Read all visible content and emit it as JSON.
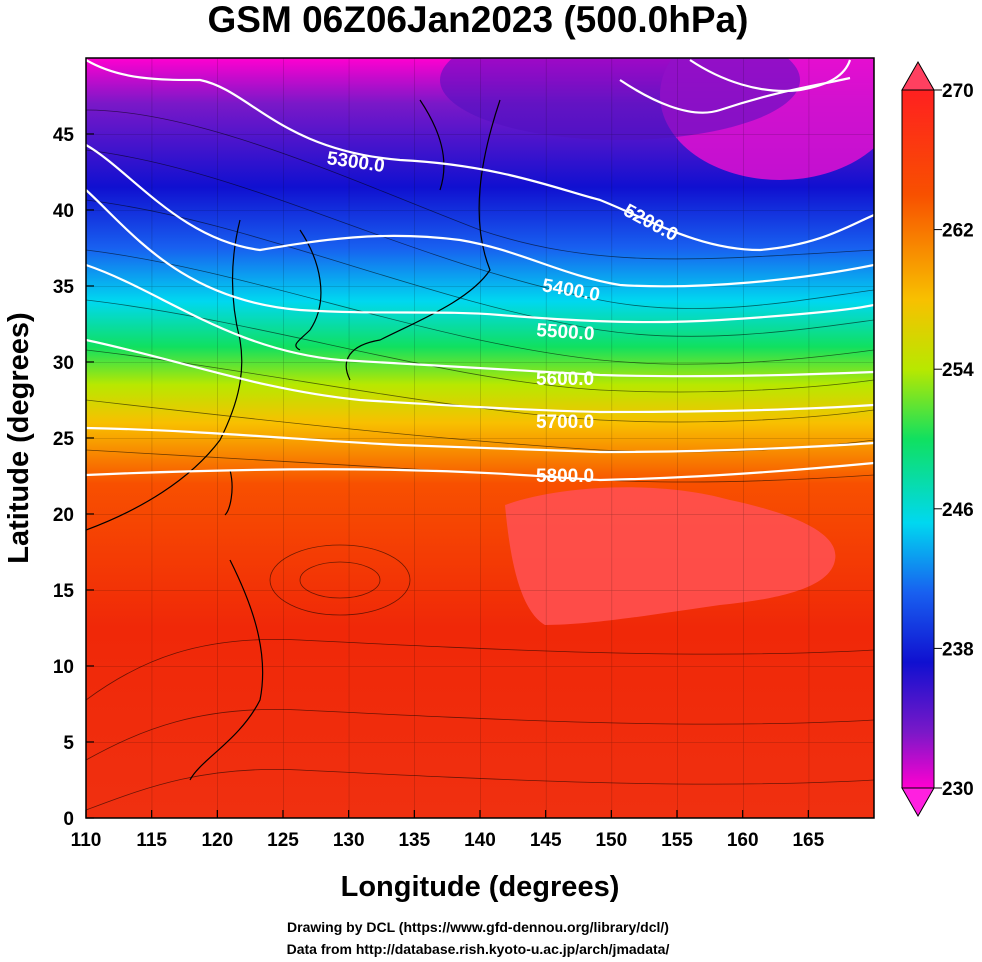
{
  "title": "GSM 06Z06Jan2023 (500.0hPa)",
  "x_axis": {
    "label": "Longitude (degrees)",
    "range": [
      110,
      170
    ],
    "ticks": [
      "110",
      "115",
      "120",
      "125",
      "130",
      "135",
      "140",
      "145",
      "150",
      "155",
      "160",
      "165"
    ]
  },
  "y_axis": {
    "label": "Latitude  (degrees)",
    "range": [
      0,
      50
    ],
    "ticks": [
      "0",
      "5",
      "10",
      "15",
      "20",
      "25",
      "30",
      "35",
      "40",
      "45"
    ]
  },
  "colorbar": {
    "range": [
      230,
      270
    ],
    "labels": [
      "270",
      "262",
      "254",
      "246",
      "238",
      "230"
    ],
    "colors": [
      "#ff00d0",
      "#7a18c8",
      "#1010d0",
      "#1860f0",
      "#00d8f0",
      "#10e060",
      "#b8e800",
      "#f8c000",
      "#f85000",
      "#f02808",
      "#ff4040"
    ]
  },
  "contours": {
    "color": "#ffffff",
    "labels": [
      "5300.0",
      "5200.0",
      "5400.0",
      "5500.0",
      "5600.0",
      "5700.0",
      "5800.0"
    ]
  },
  "credits": {
    "line1": "Drawing by DCL (https://www.gfd-dennou.org/library/dcl/)",
    "line2": "Data from http://database.rish.kyoto-u.ac.jp/arch/jmadata/"
  }
}
